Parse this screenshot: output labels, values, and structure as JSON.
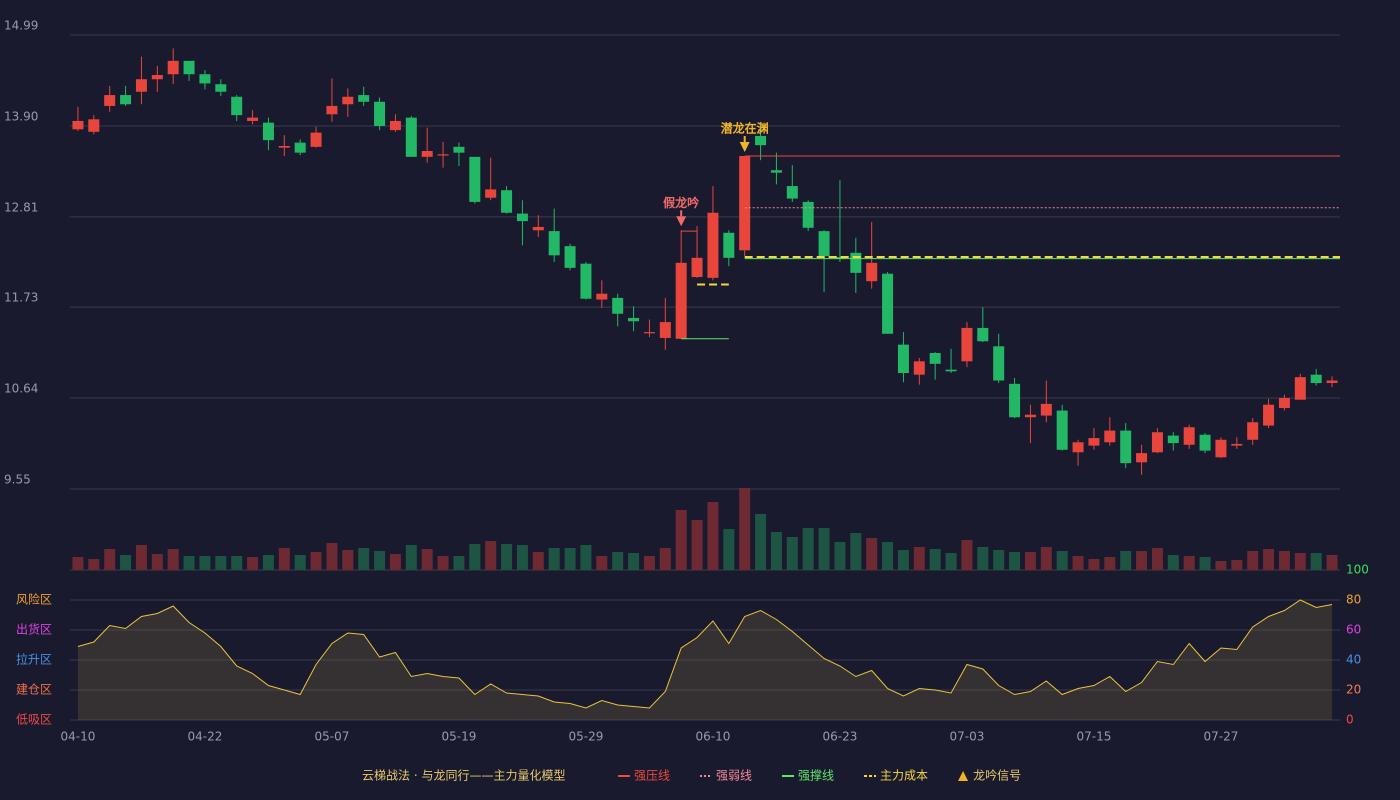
{
  "chart_data": {
    "type": "candlestick",
    "title": "云梯战法 · 与龙同行——主力量化模型",
    "categories": [
      "04-10",
      null,
      null,
      null,
      null,
      null,
      null,
      null,
      "04-22",
      null,
      null,
      null,
      null,
      null,
      null,
      null,
      "05-07",
      null,
      null,
      null,
      null,
      null,
      null,
      null,
      "05-19",
      null,
      null,
      null,
      null,
      null,
      null,
      null,
      "05-29",
      null,
      null,
      null,
      null,
      null,
      null,
      null,
      "06-10",
      null,
      null,
      null,
      null,
      null,
      null,
      null,
      "06-23",
      null,
      null,
      null,
      null,
      null,
      null,
      null,
      "07-03",
      null,
      null,
      null,
      null,
      null,
      null,
      null,
      "07-15",
      null,
      null,
      null,
      null,
      null,
      null,
      null,
      "07-27",
      null,
      null,
      null,
      null,
      null,
      null,
      null
    ],
    "ohlc": [
      [
        13.86,
        14.13,
        13.84,
        13.96
      ],
      [
        13.83,
        14.03,
        13.8,
        13.98
      ],
      [
        14.14,
        14.38,
        14.07,
        14.27
      ],
      [
        14.27,
        14.38,
        14.14,
        14.16
      ],
      [
        14.31,
        14.73,
        14.16,
        14.46
      ],
      [
        14.46,
        14.62,
        14.31,
        14.51
      ],
      [
        14.52,
        14.83,
        14.4,
        14.68
      ],
      [
        14.68,
        14.68,
        14.44,
        14.52
      ],
      [
        14.52,
        14.57,
        14.34,
        14.41
      ],
      [
        14.4,
        14.46,
        14.26,
        14.31
      ],
      [
        14.25,
        14.27,
        13.96,
        14.03
      ],
      [
        13.96,
        14.09,
        13.92,
        14.0
      ],
      [
        13.94,
        14.0,
        13.61,
        13.73
      ],
      [
        13.64,
        13.79,
        13.54,
        13.66
      ],
      [
        13.7,
        13.74,
        13.55,
        13.58
      ],
      [
        13.65,
        13.89,
        13.64,
        13.82
      ],
      [
        14.04,
        14.47,
        13.95,
        14.14
      ],
      [
        14.16,
        14.35,
        14.01,
        14.25
      ],
      [
        14.27,
        14.37,
        14.14,
        14.19
      ],
      [
        14.19,
        14.24,
        13.85,
        13.9
      ],
      [
        13.85,
        14.04,
        13.83,
        13.96
      ],
      [
        14.0,
        14.02,
        13.53,
        13.53
      ],
      [
        13.53,
        13.88,
        13.46,
        13.6
      ],
      [
        13.55,
        13.71,
        13.4,
        13.56
      ],
      [
        13.65,
        13.7,
        13.42,
        13.58
      ],
      [
        13.53,
        13.53,
        12.97,
        12.99
      ],
      [
        13.04,
        13.52,
        13.01,
        13.14
      ],
      [
        13.13,
        13.18,
        12.85,
        12.86
      ],
      [
        12.85,
        13.01,
        12.47,
        12.76
      ],
      [
        12.65,
        12.83,
        12.57,
        12.69
      ],
      [
        12.64,
        12.91,
        12.27,
        12.35
      ],
      [
        12.46,
        12.49,
        12.17,
        12.2
      ],
      [
        12.25,
        12.27,
        11.82,
        11.83
      ],
      [
        11.82,
        12.05,
        11.72,
        11.89
      ],
      [
        11.84,
        11.89,
        11.5,
        11.65
      ],
      [
        11.6,
        11.74,
        11.44,
        11.56
      ],
      [
        11.42,
        11.58,
        11.37,
        11.43
      ],
      [
        11.36,
        11.84,
        11.22,
        11.55
      ],
      [
        11.35,
        12.65,
        11.35,
        12.26
      ],
      [
        12.09,
        12.7,
        12.08,
        12.32
      ],
      [
        12.08,
        13.18,
        12.05,
        12.86
      ],
      [
        12.62,
        12.65,
        12.22,
        12.32
      ],
      [
        12.41,
        13.54,
        12.34,
        13.54
      ],
      [
        13.78,
        13.95,
        13.49,
        13.67
      ],
      [
        13.37,
        13.58,
        13.2,
        13.34
      ],
      [
        13.18,
        13.43,
        12.99,
        13.03
      ],
      [
        12.99,
        13.01,
        12.64,
        12.68
      ],
      [
        12.64,
        12.65,
        11.91,
        12.34
      ],
      [
        12.33,
        13.25,
        12.27,
        12.31
      ],
      [
        12.38,
        12.56,
        11.9,
        12.14
      ],
      [
        12.04,
        12.75,
        11.95,
        12.26
      ],
      [
        12.13,
        12.15,
        11.41,
        11.41
      ],
      [
        11.28,
        11.43,
        10.83,
        10.94
      ],
      [
        10.92,
        11.12,
        10.8,
        11.08
      ],
      [
        11.18,
        11.19,
        10.86,
        11.05
      ],
      [
        10.98,
        11.23,
        10.94,
        10.96
      ],
      [
        11.08,
        11.55,
        11.01,
        11.48
      ],
      [
        11.48,
        11.73,
        11.31,
        11.32
      ],
      [
        11.26,
        11.41,
        10.82,
        10.85
      ],
      [
        10.81,
        10.88,
        10.4,
        10.41
      ],
      [
        10.41,
        10.56,
        10.1,
        10.44
      ],
      [
        10.43,
        10.85,
        10.35,
        10.57
      ],
      [
        10.49,
        10.56,
        10.01,
        10.02
      ],
      [
        9.99,
        10.14,
        9.83,
        10.11
      ],
      [
        10.07,
        10.28,
        10.02,
        10.16
      ],
      [
        10.11,
        10.41,
        10.07,
        10.25
      ],
      [
        10.25,
        10.34,
        9.8,
        9.86
      ],
      [
        9.87,
        10.08,
        9.72,
        9.98
      ],
      [
        9.99,
        10.28,
        9.98,
        10.23
      ],
      [
        10.19,
        10.23,
        10.01,
        10.1
      ],
      [
        10.08,
        10.32,
        10.03,
        10.29
      ],
      [
        10.2,
        10.22,
        9.98,
        10.01
      ],
      [
        9.93,
        10.17,
        9.92,
        10.14
      ],
      [
        10.07,
        10.17,
        10.03,
        10.09
      ],
      [
        10.14,
        10.4,
        10.08,
        10.35
      ],
      [
        10.31,
        10.63,
        10.28,
        10.56
      ],
      [
        10.52,
        10.68,
        10.49,
        10.64
      ],
      [
        10.62,
        10.93,
        10.62,
        10.89
      ],
      [
        10.92,
        10.99,
        10.79,
        10.82
      ],
      [
        10.82,
        10.9,
        10.77,
        10.85
      ]
    ],
    "up_color": "#e8463c",
    "down_color": "#22b866",
    "ylim": [
      9.55,
      14.99
    ],
    "yticks": [
      14.99,
      {
        "value": 13.9,
        "label": "13.90"
      },
      12.81,
      11.73,
      10.64,
      9.55
    ],
    "grid": true,
    "volume": [
      13,
      11,
      21,
      15,
      25,
      16,
      21,
      14,
      14,
      14,
      14,
      13,
      15,
      22,
      15,
      18,
      27,
      20,
      22,
      19,
      16,
      25,
      21,
      14,
      14,
      26,
      29,
      26,
      25,
      18,
      22,
      22,
      25,
      14,
      18,
      17,
      14,
      22,
      60,
      50,
      68,
      41,
      82,
      56,
      38,
      33,
      42,
      42,
      28,
      37,
      32,
      28,
      20,
      23,
      21,
      17,
      30,
      23,
      20,
      18,
      18,
      23,
      19,
      14,
      11,
      13,
      19,
      19,
      22,
      15,
      14,
      13,
      9,
      10,
      19,
      21,
      19,
      17,
      17,
      15
    ],
    "volume_up_color": "#6e2a33",
    "volume_down_color": "#1e5443",
    "lines": [
      {
        "name": "强压线",
        "color": "#ec4a3f",
        "style": "solid",
        "segments": [
          {
            "start": 42,
            "end": 79,
            "value": 13.54
          },
          {
            "start": 38,
            "end": 39,
            "value": 12.64
          }
        ]
      },
      {
        "name": "强弱线",
        "color": "#f08a9a",
        "style": "dotted",
        "segments": [
          {
            "start": 42,
            "end": 79,
            "value": 12.92
          }
        ]
      },
      {
        "name": "强撑线",
        "color": "#5ee66b",
        "style": "solid",
        "segments": [
          {
            "start": 42,
            "end": 79,
            "value": 12.31
          },
          {
            "start": 38,
            "end": 41,
            "value": 11.35
          }
        ]
      },
      {
        "name": "主力成本",
        "color": "#f5d742",
        "style": "dashed",
        "segments": [
          {
            "start": 42,
            "end": 79,
            "value": 12.33
          },
          {
            "start": 39,
            "end": 41,
            "value": 12.0
          }
        ]
      }
    ],
    "signal_legend": "龙吟信号",
    "signal_color": "#f0b429",
    "signals": [
      {
        "label": "假龙吟",
        "index": 38,
        "color": "#f06a6a"
      },
      {
        "label": "潜龙在渊",
        "index": 42,
        "color": "#f0b429"
      }
    ],
    "oscillator": {
      "values": [
        49,
        52,
        63,
        61,
        69,
        71,
        76,
        65,
        58,
        49,
        36,
        31,
        23,
        20,
        17,
        37,
        51,
        58,
        57,
        42,
        45,
        29,
        31,
        29,
        28,
        17,
        24,
        18,
        17,
        16,
        12,
        11,
        8,
        13,
        10,
        9,
        8,
        19,
        48,
        55,
        66,
        51,
        69,
        73,
        67,
        59,
        50,
        41,
        36,
        29,
        33,
        21,
        16,
        21,
        20,
        18,
        37,
        34,
        23,
        17,
        19,
        26,
        17,
        21,
        23,
        29,
        19,
        25,
        39,
        37,
        51,
        39,
        48,
        47,
        62,
        69,
        73,
        80,
        75,
        77
      ],
      "color": "#e8c53a",
      "ylim": [
        0,
        100
      ],
      "yticks": [
        0,
        20,
        40,
        60,
        80,
        100
      ],
      "ytick_colors": [
        "#f04848",
        "#f07a50",
        "#4a90e2",
        "#e040e0",
        "#f0a030",
        "#3ddc5a"
      ],
      "zones": [
        {
          "label": "风险区",
          "value": 80,
          "color": "#f0a030"
        },
        {
          "label": "出货区",
          "value": 60,
          "color": "#e040e0"
        },
        {
          "label": "拉升区",
          "value": 40,
          "color": "#4a90e2"
        },
        {
          "label": "建仓区",
          "value": 20,
          "color": "#f07050"
        },
        {
          "label": "低吸区",
          "value": 0,
          "color": "#f04848"
        }
      ]
    }
  }
}
